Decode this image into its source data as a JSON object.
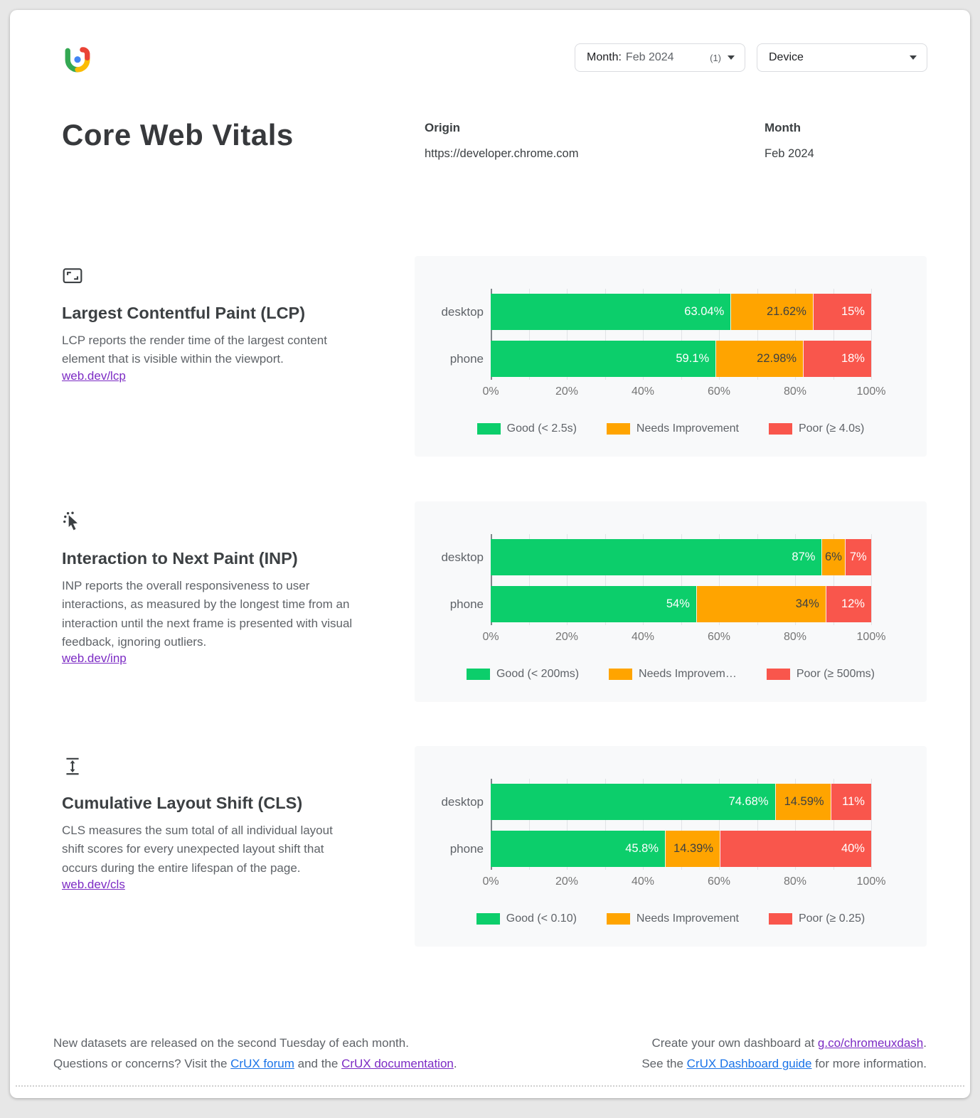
{
  "header": {
    "month_filter": {
      "label": "Month:",
      "value": "Feb 2024",
      "count": "(1)"
    },
    "device_filter": {
      "label": "Device"
    }
  },
  "info": {
    "title": "Core Web Vitals",
    "origin_label": "Origin",
    "origin_value": "https://developer.chrome.com",
    "month_label": "Month",
    "month_value": "Feb 2024"
  },
  "series_meta": [
    {
      "name": "Good",
      "color": "#0CCE6B",
      "label_color": "#FFFFFF"
    },
    {
      "name": "Needs Improvement",
      "color": "#FFA400",
      "label_color": "#3C4043"
    },
    {
      "name": "Poor",
      "color": "#F9564C",
      "label_color": "#FFFFFF"
    }
  ],
  "sections": [
    {
      "icon": "fit-screen-icon",
      "title": "Largest Contentful Paint (LCP)",
      "description": "LCP reports the render time of the largest content element that is visible within the viewport.",
      "link": "web.dev/lcp"
    },
    {
      "icon": "pointer-click-icon",
      "title": "Interaction to Next Paint (INP)",
      "description": "INP reports the overall responsiveness to user interactions, as measured by the longest time from an interaction until the next frame is presented with visual feedback, ignoring outliers.",
      "link": "web.dev/inp"
    },
    {
      "icon": "layout-shift-icon",
      "title": "Cumulative Layout Shift (CLS)",
      "description": "CLS measures the sum total of all individual layout shift scores for every unexpected layout shift that occurs during the entire lifespan of the page.",
      "link": "web.dev/cls"
    }
  ],
  "chart_data": [
    {
      "type": "bar",
      "stacked": true,
      "orientation": "horizontal",
      "title": "Largest Contentful Paint (LCP)",
      "categories": [
        "desktop",
        "phone"
      ],
      "series": [
        {
          "name": "Good (< 2.5s)",
          "values": [
            63.04,
            59.1
          ]
        },
        {
          "name": "Needs Improvement",
          "values": [
            21.62,
            22.98
          ]
        },
        {
          "name": "Poor (≥ 4.0s)",
          "values": [
            15.34,
            17.92
          ]
        }
      ],
      "bar_labels": [
        [
          "63.04%",
          "21.62%",
          "15%"
        ],
        [
          "59.1%",
          "22.98%",
          "18%"
        ]
      ],
      "xlim": [
        0,
        100
      ],
      "x_ticks": [
        "0%",
        "20%",
        "40%",
        "60%",
        "80%",
        "100%"
      ],
      "grid": true,
      "legend_position": "bottom",
      "legend": [
        "Good (< 2.5s)",
        "Needs Improvement",
        "Poor (≥ 4.0s)"
      ]
    },
    {
      "type": "bar",
      "stacked": true,
      "orientation": "horizontal",
      "title": "Interaction to Next Paint (INP)",
      "categories": [
        "desktop",
        "phone"
      ],
      "series": [
        {
          "name": "Good (< 200ms)",
          "values": [
            87,
            54
          ]
        },
        {
          "name": "Needs Improvement",
          "values": [
            6,
            34
          ]
        },
        {
          "name": "Poor (≥ 500ms)",
          "values": [
            7,
            12
          ]
        }
      ],
      "bar_labels": [
        [
          "87%",
          "6%",
          "7%"
        ],
        [
          "54%",
          "34%",
          "12%"
        ]
      ],
      "xlim": [
        0,
        100
      ],
      "x_ticks": [
        "0%",
        "20%",
        "40%",
        "60%",
        "80%",
        "100%"
      ],
      "grid": true,
      "legend_position": "bottom",
      "legend": [
        "Good (< 200ms)",
        "Needs Improvem…",
        "Poor (≥ 500ms)"
      ]
    },
    {
      "type": "bar",
      "stacked": true,
      "orientation": "horizontal",
      "title": "Cumulative Layout Shift (CLS)",
      "categories": [
        "desktop",
        "phone"
      ],
      "series": [
        {
          "name": "Good (< 0.10)",
          "values": [
            74.68,
            45.8
          ]
        },
        {
          "name": "Needs Improvement",
          "values": [
            14.59,
            14.39
          ]
        },
        {
          "name": "Poor (≥ 0.25)",
          "values": [
            10.73,
            39.81
          ]
        }
      ],
      "bar_labels": [
        [
          "74.68%",
          "14.59%",
          "11%"
        ],
        [
          "45.8%",
          "14.39%",
          "40%"
        ]
      ],
      "xlim": [
        0,
        100
      ],
      "x_ticks": [
        "0%",
        "20%",
        "40%",
        "60%",
        "80%",
        "100%"
      ],
      "grid": true,
      "legend_position": "bottom",
      "legend": [
        "Good (< 0.10)",
        "Needs Improvement",
        "Poor (≥ 0.25)"
      ]
    }
  ],
  "footer": {
    "left": {
      "line1": "New datasets are released on the second Tuesday of each month.",
      "line2_prefix": "Questions or concerns? Visit the ",
      "forum_link": "CrUX forum",
      "line2_mid": " and the ",
      "docs_link": "CrUX documentation",
      "line2_suffix": "."
    },
    "right": {
      "line1_prefix": "Create your own dashboard at ",
      "dash_link": "g.co/chromeuxdash",
      "line1_suffix": ".",
      "line2_prefix": "See the ",
      "guide_link": "CrUX Dashboard guide",
      "line2_suffix": " for more information."
    }
  },
  "colors": {
    "good": "#0CCE6B",
    "needs_improvement": "#FFA400",
    "poor": "#F9564C",
    "link_blue": "#1A73E8",
    "link_purple": "#7C2BC4",
    "panel_background": "#F8F9FA"
  }
}
